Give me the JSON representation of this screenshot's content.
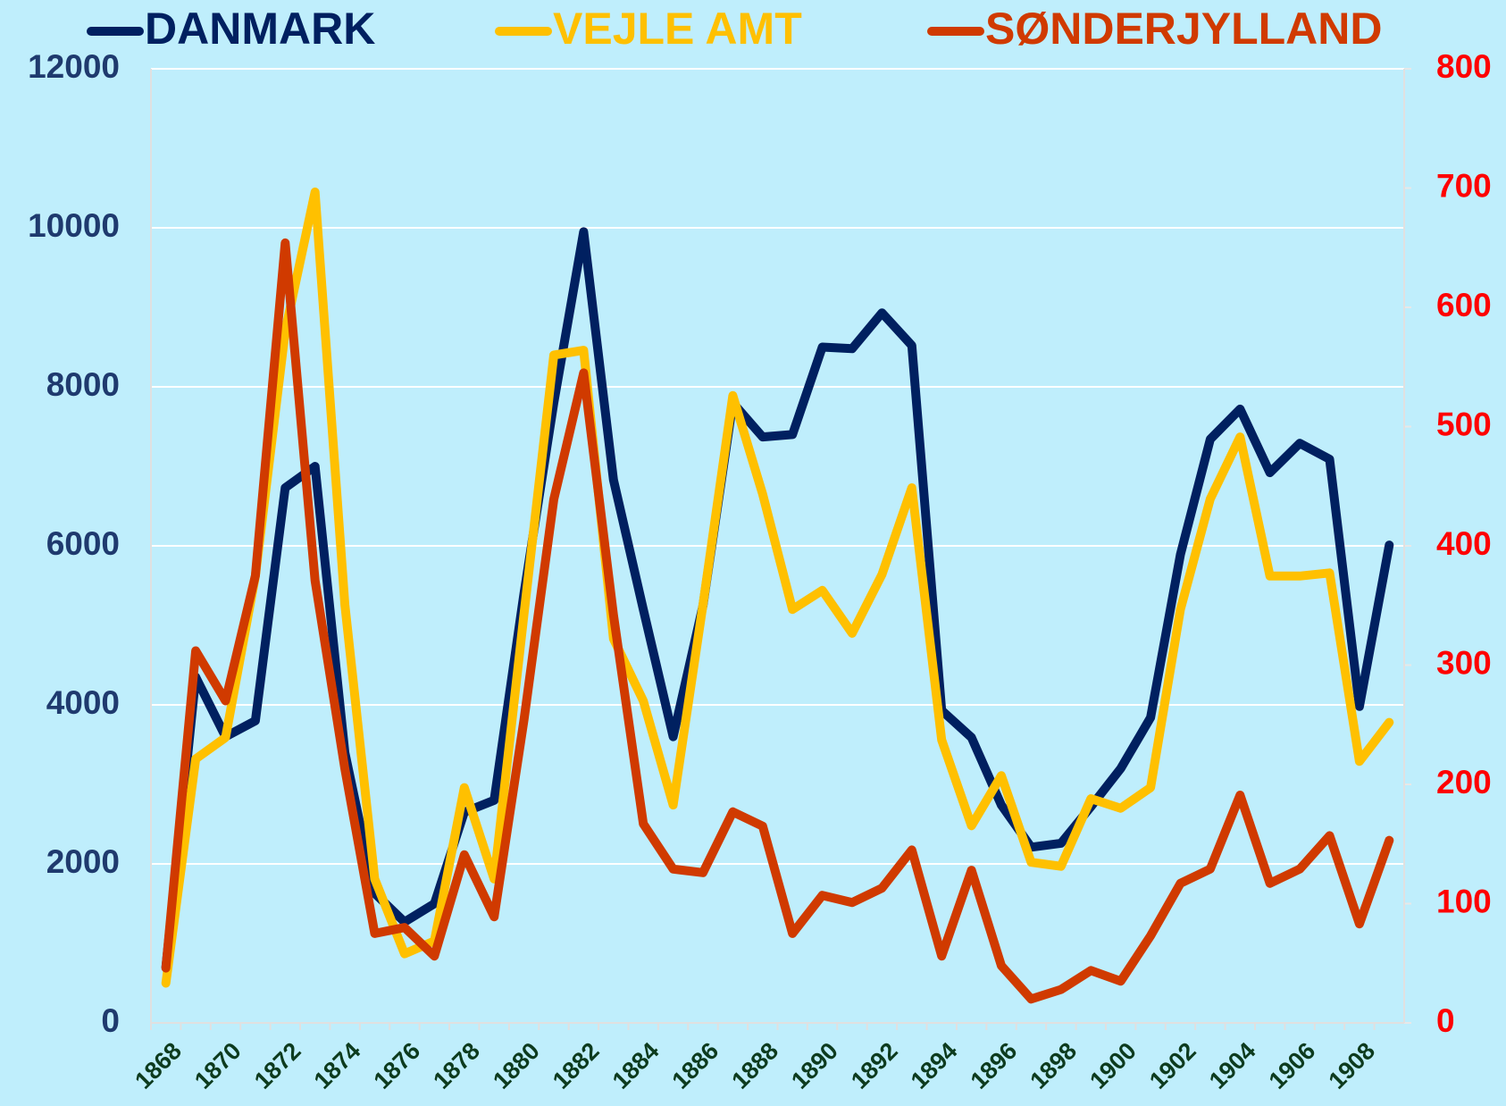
{
  "chart_data": {
    "type": "line",
    "categories": [
      1868,
      null,
      1870,
      null,
      1872,
      null,
      1874,
      null,
      1876,
      null,
      1878,
      null,
      1880,
      null,
      1882,
      null,
      1884,
      null,
      1886,
      null,
      1888,
      null,
      1890,
      null,
      1892,
      null,
      1894,
      null,
      1896,
      null,
      1898,
      null,
      1900,
      null,
      1902,
      null,
      1904,
      null,
      1906,
      null,
      1908,
      null
    ],
    "series": [
      {
        "name": "DANMARK",
        "color": "#002060",
        "values": [
          700,
          4350,
          3600,
          3800,
          6730,
          7000,
          3400,
          1630,
          1270,
          1500,
          2650,
          2800,
          5400,
          7800,
          9950,
          6830,
          5200,
          3600,
          5250,
          7800,
          7370,
          7400,
          8500,
          8480,
          8930,
          8520,
          3930,
          3590,
          2740,
          2210,
          2260,
          2720,
          3200,
          3840,
          5890,
          7340,
          7720,
          6920,
          7290,
          7090,
          3980,
          6010
        ]
      },
      {
        "name": "VEJLE AMT",
        "color": "#ffc000",
        "values": [
          500,
          3320,
          3590,
          5620,
          8700,
          10450,
          5260,
          1810,
          870,
          1030,
          2960,
          1810,
          5140,
          8400,
          8460,
          4830,
          4050,
          2740,
          5260,
          7890,
          6650,
          5200,
          5440,
          4900,
          5640,
          6730,
          3560,
          2480,
          3110,
          2020,
          1970,
          2820,
          2700,
          2960,
          5200,
          6590,
          7370,
          5620,
          5620,
          5660,
          3290,
          3780
        ]
      },
      {
        "name": "SØNDERJYLLAND",
        "color": "#d03a00",
        "axis": "y2",
        "values": [
          46,
          312,
          270,
          375,
          654,
          371,
          213,
          75,
          80,
          56,
          141,
          89,
          254,
          439,
          545,
          342,
          167,
          129,
          126,
          177,
          165,
          75,
          107,
          101,
          113,
          145,
          56,
          128,
          48,
          20,
          28,
          44,
          35,
          73,
          117,
          129,
          191,
          117,
          129,
          157,
          83,
          153
        ]
      }
    ],
    "ylim": [
      0,
      12000
    ],
    "yticks": [
      0,
      2000,
      4000,
      6000,
      8000,
      10000,
      12000
    ],
    "y2lim": [
      0,
      800
    ],
    "y2ticks": [
      0,
      100,
      200,
      300,
      400,
      500,
      600,
      700,
      800
    ],
    "grid": true,
    "legend": "top"
  }
}
